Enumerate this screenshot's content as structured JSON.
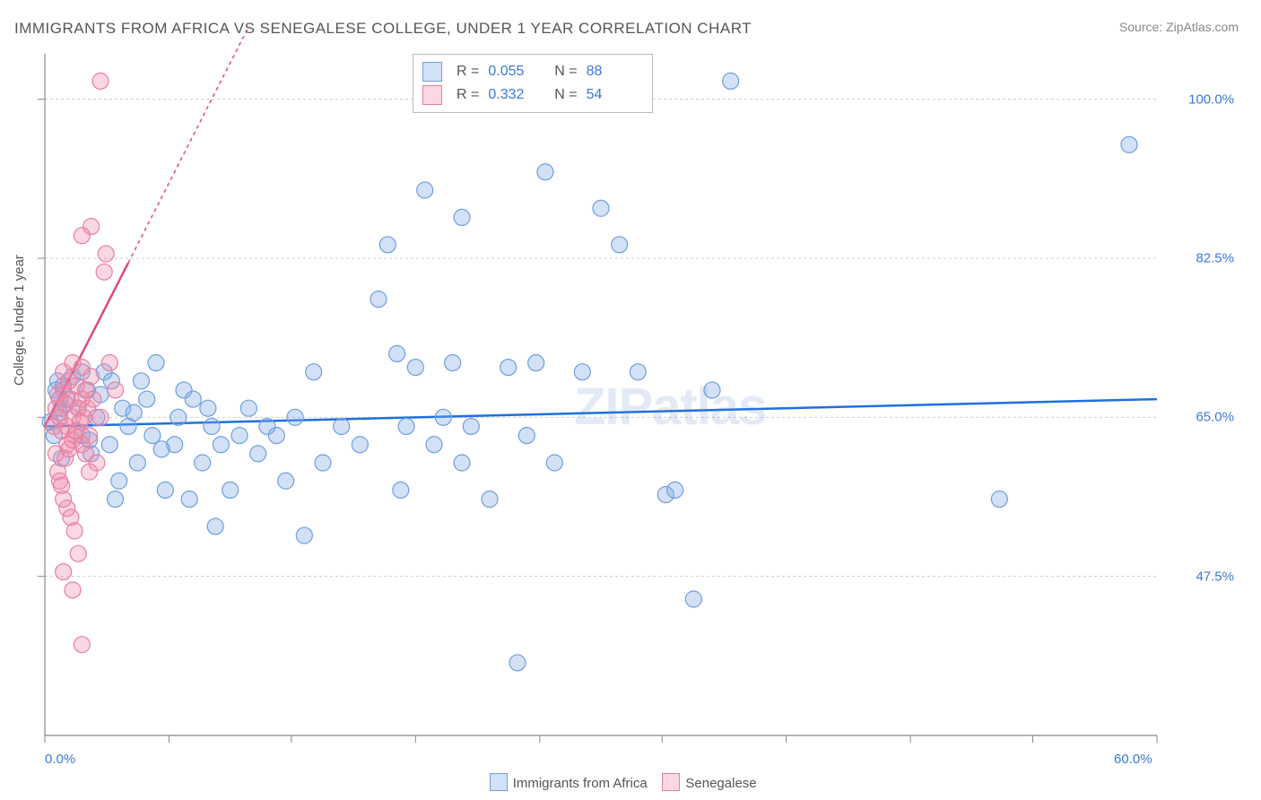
{
  "title": "IMMIGRANTS FROM AFRICA VS SENEGALESE COLLEGE, UNDER 1 YEAR CORRELATION CHART",
  "source_label": "Source: ZipAtlas.com",
  "y_axis_label": "College, Under 1 year",
  "watermark": "ZIPatlas",
  "chart": {
    "type": "scatter",
    "background_color": "#ffffff",
    "plot_border_color": "#888888",
    "grid_color": "#cccccc",
    "xlim": [
      0,
      60
    ],
    "ylim": [
      30,
      105
    ],
    "x_ticks": [
      0,
      6.7,
      13.3,
      20,
      26.7,
      33.3,
      40,
      46.7,
      53.3,
      60
    ],
    "x_tick_labels": {
      "0": "0.0%",
      "60": "60.0%"
    },
    "y_ticks": [
      47.5,
      65.0,
      82.5,
      100.0
    ],
    "y_tick_labels": [
      "47.5%",
      "65.0%",
      "82.5%",
      "100.0%"
    ],
    "axis_tick_color": "#888888",
    "axis_label_color": "#3b78d8",
    "title_color": "#555555",
    "title_fontsize": 17,
    "label_fontsize": 15,
    "marker_radius": 9,
    "marker_stroke_width": 1.2,
    "trendline_width": 2.5
  },
  "series": [
    {
      "name": "Immigrants from Africa",
      "fill_color": "rgba(130,170,230,0.35)",
      "stroke_color": "#6f9ee0",
      "trend_color": "#1f6fe0",
      "trend_x": [
        0,
        60
      ],
      "trend_y": [
        64.0,
        67.0
      ],
      "trend_dash": "",
      "R": "0.055",
      "N": "88",
      "points": [
        [
          0.3,
          64.5
        ],
        [
          0.5,
          63.0
        ],
        [
          0.6,
          68.0
        ],
        [
          0.7,
          69.0
        ],
        [
          0.8,
          67.0
        ],
        [
          0.8,
          65.5
        ],
        [
          0.9,
          66.0
        ],
        [
          0.9,
          60.5
        ],
        [
          1.0,
          68.5
        ],
        [
          1.2,
          67.0
        ],
        [
          1.5,
          69.5
        ],
        [
          1.8,
          66.0
        ],
        [
          2.0,
          63.0
        ],
        [
          2.0,
          70.0
        ],
        [
          2.3,
          68.0
        ],
        [
          2.5,
          61.0
        ],
        [
          2.8,
          65.0
        ],
        [
          3.0,
          67.5
        ],
        [
          3.2,
          70.0
        ],
        [
          3.5,
          62.0
        ],
        [
          3.8,
          56.0
        ],
        [
          4.0,
          58.0
        ],
        [
          4.2,
          66.0
        ],
        [
          4.5,
          64.0
        ],
        [
          5.0,
          60.0
        ],
        [
          5.2,
          69.0
        ],
        [
          5.5,
          67.0
        ],
        [
          5.8,
          63.0
        ],
        [
          6.0,
          71.0
        ],
        [
          6.5,
          57.0
        ],
        [
          7.0,
          62.0
        ],
        [
          7.2,
          65.0
        ],
        [
          7.5,
          68.0
        ],
        [
          7.8,
          56.0
        ],
        [
          8.0,
          67.0
        ],
        [
          8.5,
          60.0
        ],
        [
          9.0,
          64.0
        ],
        [
          9.2,
          53.0
        ],
        [
          9.5,
          62.0
        ],
        [
          10.0,
          57.0
        ],
        [
          10.5,
          63.0
        ],
        [
          11.0,
          66.0
        ],
        [
          11.5,
          61.0
        ],
        [
          12.0,
          64.0
        ],
        [
          12.5,
          63.0
        ],
        [
          13.0,
          58.0
        ],
        [
          13.5,
          65.0
        ],
        [
          14.0,
          52.0
        ],
        [
          14.5,
          70.0
        ],
        [
          15.0,
          60.0
        ],
        [
          16.0,
          64.0
        ],
        [
          17.0,
          62.0
        ],
        [
          18.0,
          78.0
        ],
        [
          18.5,
          84.0
        ],
        [
          19.0,
          72.0
        ],
        [
          19.2,
          57.0
        ],
        [
          19.5,
          64.0
        ],
        [
          20.0,
          70.5
        ],
        [
          20.5,
          90.0
        ],
        [
          21.0,
          62.0
        ],
        [
          21.5,
          65.0
        ],
        [
          22.0,
          71.0
        ],
        [
          22.5,
          60.0
        ],
        [
          22.5,
          87.0
        ],
        [
          23.0,
          64.0
        ],
        [
          24.0,
          56.0
        ],
        [
          25.0,
          70.5
        ],
        [
          25.5,
          38.0
        ],
        [
          26.0,
          63.0
        ],
        [
          26.5,
          71.0
        ],
        [
          27.0,
          92.0
        ],
        [
          27.5,
          60.0
        ],
        [
          29.0,
          70.0
        ],
        [
          30.0,
          88.0
        ],
        [
          31.0,
          84.0
        ],
        [
          32.0,
          70.0
        ],
        [
          33.5,
          56.5
        ],
        [
          34.0,
          57.0
        ],
        [
          35.0,
          45.0
        ],
        [
          36.0,
          68.0
        ],
        [
          37.0,
          102.0
        ],
        [
          51.5,
          56.0
        ],
        [
          58.5,
          95.0
        ],
        [
          2.4,
          62.5
        ],
        [
          3.6,
          69.0
        ],
        [
          4.8,
          65.5
        ],
        [
          6.3,
          61.5
        ],
        [
          8.8,
          66.0
        ]
      ]
    },
    {
      "name": "Senegalese",
      "fill_color": "rgba(240,140,170,0.35)",
      "stroke_color": "#e97fa3",
      "trend_color": "#e0497a",
      "trend_x": [
        0,
        4.5
      ],
      "trend_y": [
        64.0,
        82.0
      ],
      "trend_dash": "",
      "trend_ext_x": [
        4.5,
        11.0
      ],
      "trend_ext_y": [
        82.0,
        108.0
      ],
      "trend_ext_dash": "4,4",
      "R": "0.332",
      "N": "54",
      "points": [
        [
          0.5,
          64.0
        ],
        [
          0.6,
          66.0
        ],
        [
          0.7,
          67.5
        ],
        [
          0.8,
          65.0
        ],
        [
          0.9,
          63.5
        ],
        [
          1.0,
          68.0
        ],
        [
          1.0,
          70.0
        ],
        [
          1.1,
          66.5
        ],
        [
          1.2,
          64.0
        ],
        [
          1.2,
          62.0
        ],
        [
          1.3,
          69.0
        ],
        [
          1.4,
          67.0
        ],
        [
          1.5,
          65.0
        ],
        [
          1.5,
          71.0
        ],
        [
          1.6,
          63.0
        ],
        [
          1.7,
          68.5
        ],
        [
          1.8,
          66.0
        ],
        [
          1.9,
          64.5
        ],
        [
          2.0,
          67.0
        ],
        [
          2.0,
          70.5
        ],
        [
          2.1,
          65.0
        ],
        [
          2.2,
          68.0
        ],
        [
          2.3,
          66.0
        ],
        [
          2.4,
          63.0
        ],
        [
          2.5,
          69.5
        ],
        [
          2.6,
          67.0
        ],
        [
          2.8,
          60.0
        ],
        [
          3.0,
          65.0
        ],
        [
          3.2,
          81.0
        ],
        [
          3.3,
          83.0
        ],
        [
          3.5,
          71.0
        ],
        [
          3.8,
          68.0
        ],
        [
          0.8,
          58.0
        ],
        [
          1.0,
          56.0
        ],
        [
          1.2,
          55.0
        ],
        [
          1.4,
          54.0
        ],
        [
          1.6,
          52.5
        ],
        [
          1.8,
          50.0
        ],
        [
          1.0,
          48.0
        ],
        [
          1.5,
          46.0
        ],
        [
          2.0,
          40.0
        ],
        [
          3.0,
          102.0
        ],
        [
          2.5,
          86.0
        ],
        [
          2.0,
          85.0
        ],
        [
          0.6,
          61.0
        ],
        [
          0.7,
          59.0
        ],
        [
          0.9,
          57.5
        ],
        [
          1.1,
          60.5
        ],
        [
          1.3,
          61.5
        ],
        [
          1.5,
          62.5
        ],
        [
          1.7,
          63.5
        ],
        [
          2.0,
          62.0
        ],
        [
          2.2,
          61.0
        ],
        [
          2.4,
          59.0
        ]
      ]
    }
  ],
  "stats_legend": [
    {
      "swatch_fill": "rgba(130,170,230,0.35)",
      "swatch_stroke": "#6f9ee0",
      "R": "0.055",
      "N": "88"
    },
    {
      "swatch_fill": "rgba(240,140,170,0.35)",
      "swatch_stroke": "#e97fa3",
      "R": "0.332",
      "N": "54"
    }
  ],
  "bottom_legend": [
    {
      "swatch_fill": "rgba(130,170,230,0.35)",
      "swatch_stroke": "#6f9ee0",
      "label": "Immigrants from Africa"
    },
    {
      "swatch_fill": "rgba(240,140,170,0.35)",
      "swatch_stroke": "#e97fa3",
      "label": "Senegalese"
    }
  ]
}
